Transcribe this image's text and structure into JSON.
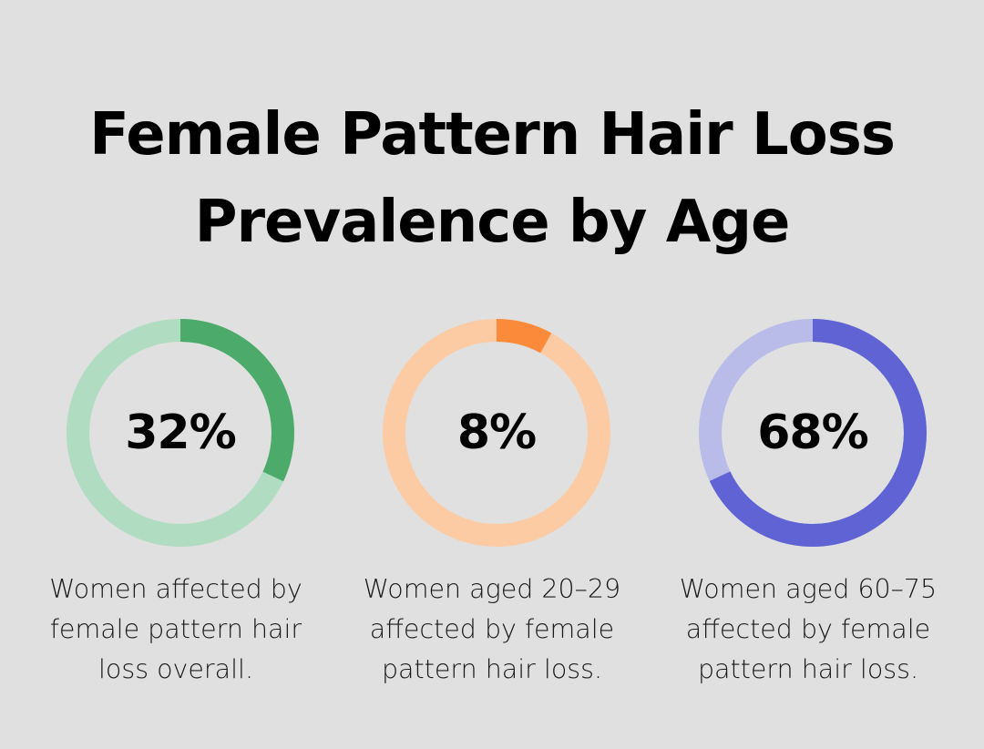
{
  "title_line1": "Female Pattern Hair Loss",
  "title_line2": "Prevalence by Age",
  "chart_data": [
    {
      "type": "pie",
      "value": 32,
      "label": "32%",
      "caption": "Women affected by\nfemale pattern hair\nloss overall.",
      "colors": {
        "fill": "#4caa6a",
        "track": "#b0dcc2"
      }
    },
    {
      "type": "pie",
      "value": 8,
      "label": "8%",
      "caption": "Women aged 20–29\naffected by female\npattern hair loss.",
      "colors": {
        "fill": "#fb8a3a",
        "track": "#fdcba3"
      }
    },
    {
      "type": "pie",
      "value": 68,
      "label": "68%",
      "caption": "Women aged 60–75\naffected by female\npattern hair loss.",
      "colors": {
        "fill": "#5f63d4",
        "track": "#b9bbe9"
      }
    }
  ]
}
